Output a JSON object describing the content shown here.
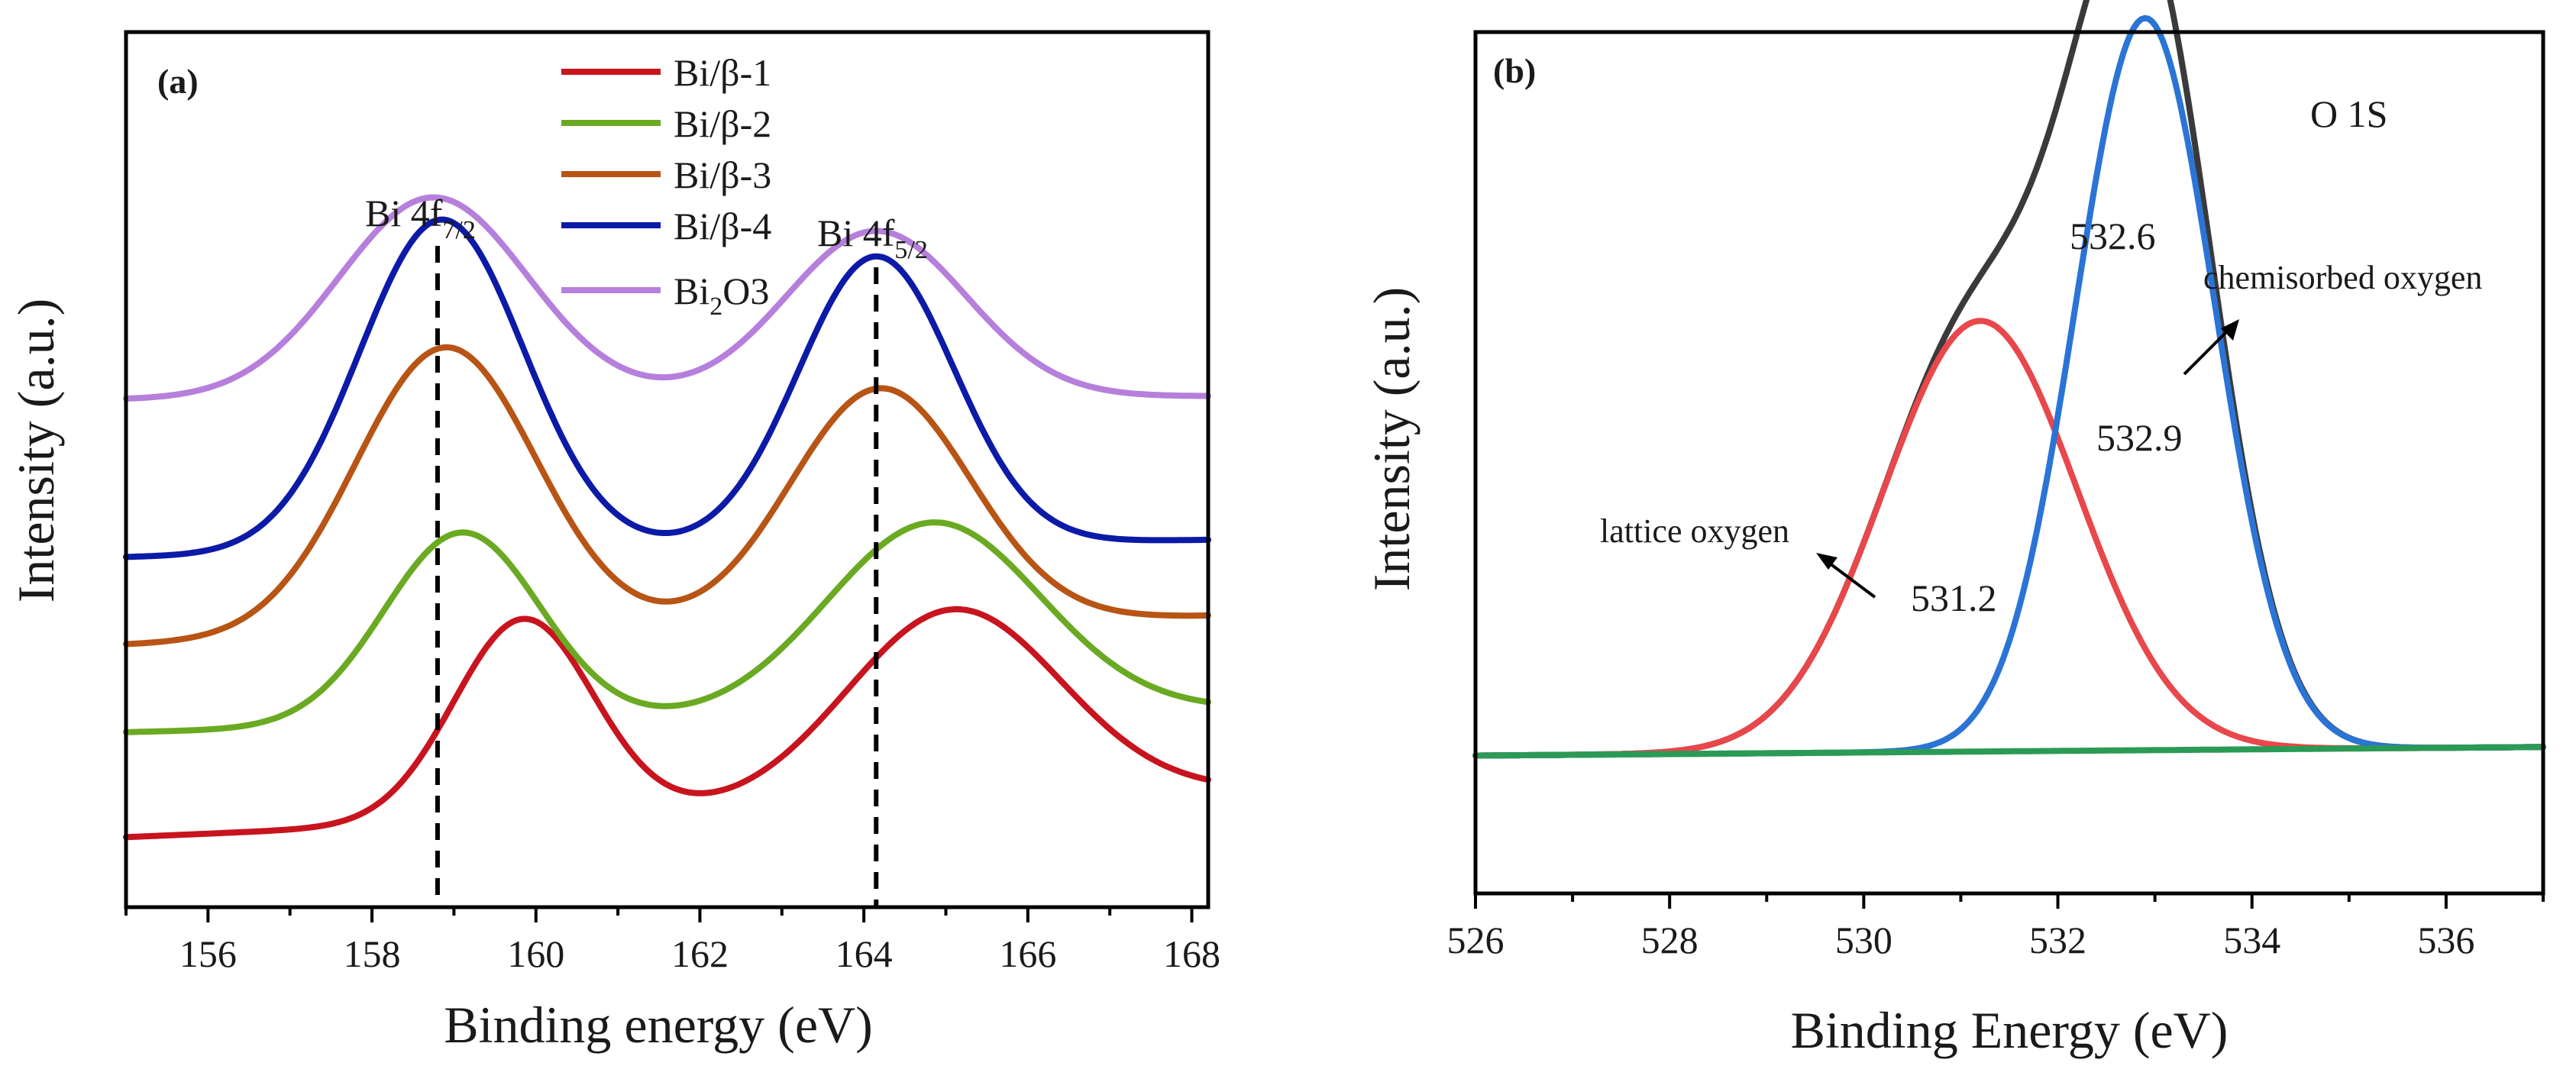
{
  "chart_data": [
    {
      "type": "line",
      "panel_label": "(a)",
      "xlabel": "Binding energy (eV)",
      "ylabel": "Intensity (a.u.)",
      "xlim": [
        155,
        168.2
      ],
      "ylim": [
        0,
        1
      ],
      "xticks": [
        "156",
        "158",
        "160",
        "162",
        "164",
        "166",
        "168"
      ],
      "xtick_values": [
        156,
        158,
        160,
        162,
        164,
        166,
        168
      ],
      "legend_position": "top-center",
      "series": [
        {
          "name": "Bi/β-1",
          "name_base": "Bi/β-1",
          "name_sub": "",
          "name_rest": "",
          "color": "#c8141e",
          "offset": 0.08,
          "peaks": [
            {
              "center": 159.85,
              "height": 0.23,
              "width": 0.85
            },
            {
              "center": 165.1,
              "height": 0.22,
              "width": 1.3
            }
          ],
          "slope": 0.004
        },
        {
          "name": "Bi/β-2",
          "name_base": "Bi/β-2",
          "name_sub": "",
          "name_rest": "",
          "color": "#6aaa22",
          "offset": 0.2,
          "peaks": [
            {
              "center": 159.1,
              "height": 0.22,
              "width": 0.95
            },
            {
              "center": 164.85,
              "height": 0.22,
              "width": 1.3
            }
          ],
          "slope": 0.002
        },
        {
          "name": "Bi/β-3",
          "name_base": "Bi/β-3",
          "name_sub": "",
          "name_rest": "",
          "color": "#b85414",
          "offset": 0.3,
          "peaks": [
            {
              "center": 158.9,
              "height": 0.33,
              "width": 1.1
            },
            {
              "center": 164.2,
              "height": 0.27,
              "width": 1.1
            }
          ],
          "slope": 0.0025
        },
        {
          "name": "Bi/β-4",
          "name_base": "Bi/β-4",
          "name_sub": "",
          "name_rest": "",
          "color": "#0c1aa8",
          "offset": 0.4,
          "peaks": [
            {
              "center": 158.85,
              "height": 0.38,
              "width": 1.0
            },
            {
              "center": 164.15,
              "height": 0.33,
              "width": 0.95
            }
          ],
          "slope": 0.0015
        },
        {
          "name": "Bi2O3",
          "name_base": "Bi",
          "name_sub": "2",
          "name_rest": "O3",
          "color": "#b67fdc",
          "offset": 0.58,
          "peaks": [
            {
              "center": 158.75,
              "height": 0.23,
              "width": 1.15
            },
            {
              "center": 164.15,
              "height": 0.19,
              "width": 1.1
            }
          ],
          "slope": 0.0003
        }
      ],
      "reference_lines": [
        {
          "x": 158.8,
          "label_base": "Bi 4f",
          "label_sub": "7/2"
        },
        {
          "x": 164.15,
          "label_base": "Bi 4f",
          "label_sub": "5/2"
        }
      ]
    },
    {
      "type": "line",
      "panel_label": "(b)",
      "title": "O 1S",
      "xlabel": "Binding Energy (eV)",
      "ylabel": "Intensity (a.u.)",
      "xlim": [
        526,
        537
      ],
      "ylim": [
        0,
        1
      ],
      "xticks": [
        "526",
        "528",
        "530",
        "532",
        "534",
        "536"
      ],
      "xtick_values": [
        526,
        528,
        530,
        532,
        534,
        536
      ],
      "series": [
        {
          "name": "baseline",
          "color": "#2b9a55",
          "type": "linear",
          "y_start": 0.16,
          "y_end": 0.17
        },
        {
          "name": "lattice oxygen",
          "color": "#e8474b",
          "center": 531.2,
          "height": 0.5,
          "width": 1.0
        },
        {
          "name": "chemisorbed oxygen",
          "color": "#2a74d6",
          "center": 532.9,
          "height": 0.85,
          "width": 0.72
        },
        {
          "name": "envelope",
          "color": "#3a3a3a",
          "type": "sum"
        }
      ],
      "annotations": [
        {
          "text": "532.6",
          "x": 532.6
        },
        {
          "text": "532.9",
          "x": 532.9
        },
        {
          "text": "531.2",
          "x": 531.2
        },
        {
          "text": "lattice oxygen"
        },
        {
          "text": "chemisorbed oxygen"
        }
      ]
    }
  ]
}
